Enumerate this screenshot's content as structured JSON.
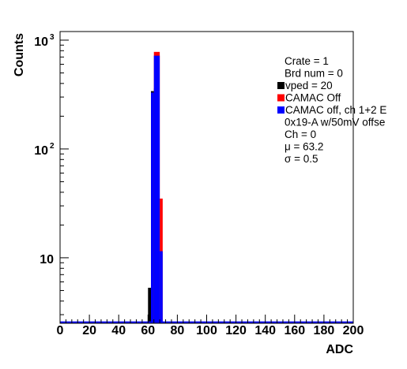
{
  "chart_data": {
    "type": "bar",
    "xlabel": "ADC",
    "ylabel": "Counts",
    "xlim": [
      0,
      200
    ],
    "ylim": [
      2.5,
      1200
    ],
    "yscale": "log",
    "x_ticks": [
      "0",
      "20",
      "40",
      "60",
      "80",
      "100",
      "120",
      "140",
      "160",
      "180",
      "200"
    ],
    "y_ticks": [
      {
        "value": 10,
        "base": "10",
        "exp": ""
      },
      {
        "value": 100,
        "base": "10",
        "exp": "2"
      },
      {
        "value": 1000,
        "base": "10",
        "exp": "3"
      }
    ],
    "series": [
      {
        "name": "vped = 20",
        "color": "#000000",
        "bins": [
          [
            60,
            62,
            5.3
          ],
          [
            62,
            64,
            340
          ],
          [
            64,
            66,
            360
          ]
        ]
      },
      {
        "name": "CAMAC Off",
        "color": "#ff0000",
        "bins": [
          [
            64,
            68,
            780
          ],
          [
            68,
            70,
            35
          ]
        ]
      },
      {
        "name": "CAMAC off, ch 1+2 E",
        "color": "#0000ff",
        "bins": [
          [
            0,
            200,
            2.6
          ],
          [
            62,
            64,
            330
          ],
          [
            64,
            68,
            720
          ],
          [
            68,
            70,
            11.5
          ]
        ]
      }
    ],
    "stats": [
      "Crate = 1",
      "Brd num = 0",
      "0x19-A w/50mV offse",
      "Ch = 0",
      "μ = 63.2",
      "σ = 0.5"
    ],
    "legend_position": "top-right"
  }
}
